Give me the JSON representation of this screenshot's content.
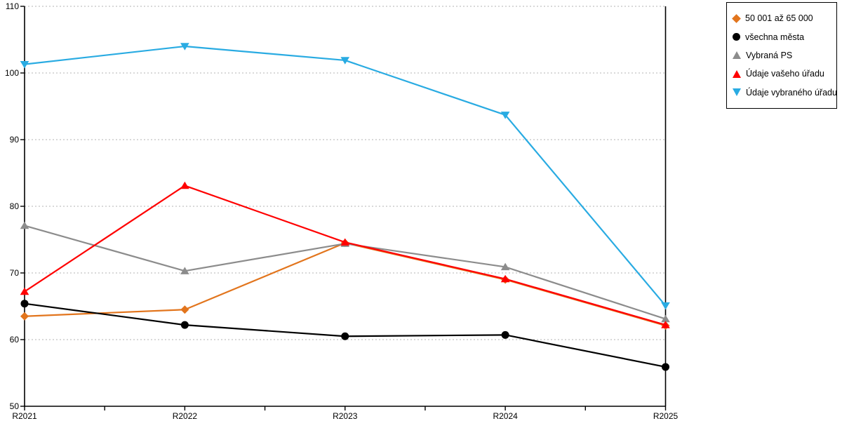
{
  "chart_data": {
    "type": "line",
    "title": "",
    "xlabel": "",
    "ylabel": "",
    "categories": [
      "R2021",
      "R2022",
      "R2023",
      "R2024",
      "R2025"
    ],
    "ylim": [
      50,
      110
    ],
    "yticks": [
      50,
      60,
      70,
      80,
      90,
      100,
      110
    ],
    "grid": "horizontal-dotted",
    "grid_color": "#b3b3b3",
    "axis_color": "#000000",
    "tick_label_color": "#000000",
    "legend_position": "top-right-outside",
    "legend_border_color": "#000000",
    "series": [
      {
        "name": "50 001 až 65 000",
        "marker": "diamond",
        "color": "#E2751D",
        "values": [
          63.5,
          64.5,
          74.5,
          69.0,
          62.1
        ]
      },
      {
        "name": "všechna města",
        "marker": "circle",
        "color": "#000000",
        "values": [
          65.4,
          62.2,
          60.5,
          60.7,
          55.9
        ]
      },
      {
        "name": "Vybraná PS",
        "marker": "triangle-up",
        "color": "#8C8C8C",
        "values": [
          77.1,
          70.3,
          74.4,
          70.9,
          63.1
        ]
      },
      {
        "name": "Údaje vašeho úřadu",
        "marker": "triangle-up",
        "color": "#FF0000",
        "values": [
          67.2,
          83.1,
          74.6,
          69.1,
          62.2
        ]
      },
      {
        "name": "Údaje vybraného úřadu",
        "marker": "triangle-down",
        "color": "#29ABE2",
        "values": [
          101.3,
          104.0,
          101.9,
          93.7,
          65.1
        ]
      }
    ]
  }
}
